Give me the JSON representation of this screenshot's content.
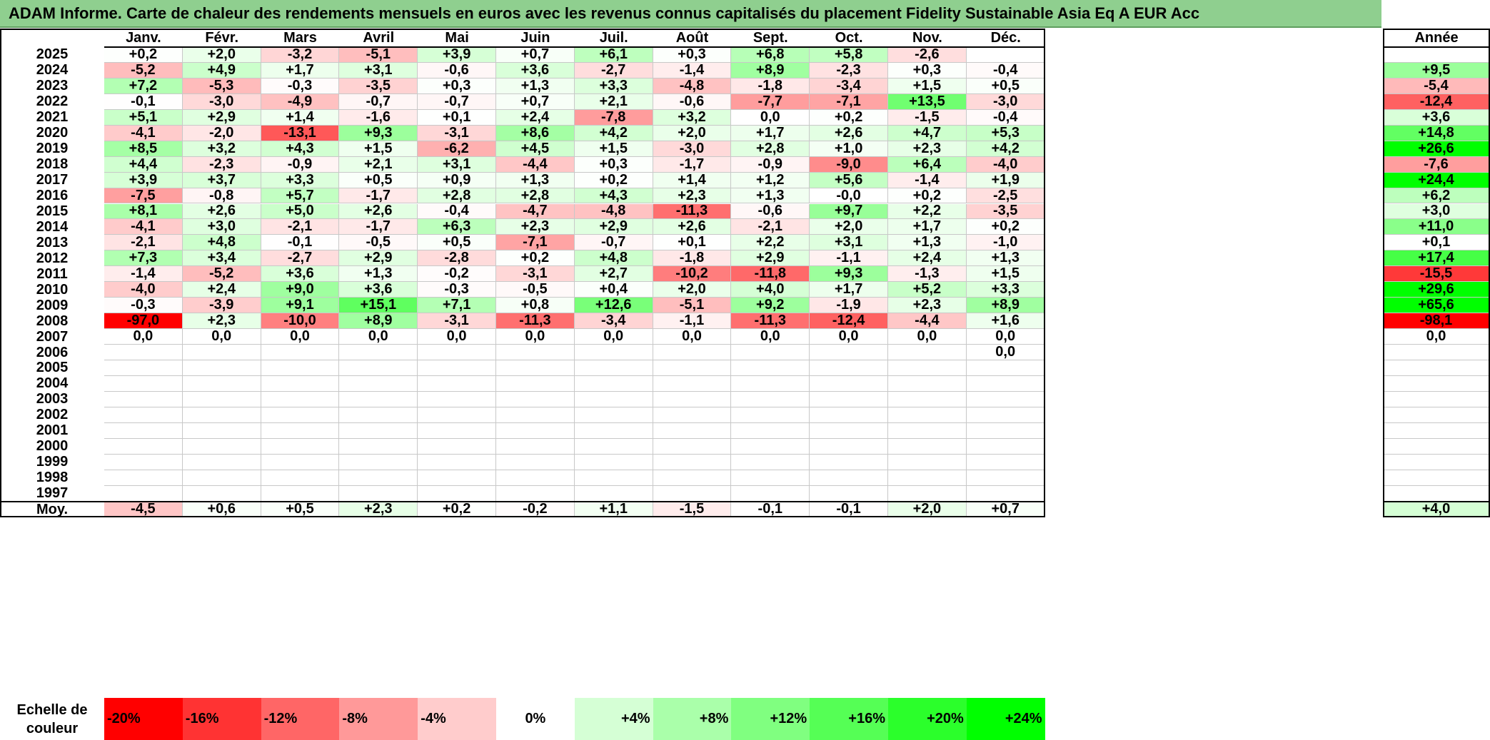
{
  "title": "ADAM Informe. Carte de chaleur des rendements mensuels en euros avec les revenus connus capitalisés du placement Fidelity Sustainable Asia Eq A EUR Acc",
  "colors": {
    "title_bg": "#8fcf8f",
    "neg_max": "#ff0000",
    "pos_max": "#00ff00",
    "neutral": "#ffffff"
  },
  "chart_data": {
    "type": "heatmap",
    "months": [
      "Janv.",
      "Févr.",
      "Mars",
      "Avril",
      "Mai",
      "Juin",
      "Juil.",
      "Août",
      "Sept.",
      "Oct.",
      "Nov.",
      "Déc."
    ],
    "year_header": "Année",
    "years": [
      "2025",
      "2024",
      "2023",
      "2022",
      "2021",
      "2020",
      "2019",
      "2018",
      "2017",
      "2016",
      "2015",
      "2014",
      "2013",
      "2012",
      "2011",
      "2010",
      "2009",
      "2008",
      "2007",
      "2006",
      "2005",
      "2004",
      "2003",
      "2002",
      "2001",
      "2000",
      "1999",
      "1998",
      "1997"
    ],
    "values": [
      [
        "+0,2",
        "+2,0",
        "-3,2",
        "-5,1",
        "+3,9",
        "+0,7",
        "+6,1",
        "+0,3",
        "+6,8",
        "+5,8",
        "-2,6",
        ""
      ],
      [
        "-5,2",
        "+4,9",
        "+1,7",
        "+3,1",
        "-0,6",
        "+3,6",
        "-2,7",
        "-1,4",
        "+8,9",
        "-2,3",
        "+0,3",
        "-0,4"
      ],
      [
        "+7,2",
        "-5,3",
        "-0,3",
        "-3,5",
        "+0,3",
        "+1,3",
        "+3,3",
        "-4,8",
        "-1,8",
        "-3,4",
        "+1,5",
        "+0,5"
      ],
      [
        "-0,1",
        "-3,0",
        "-4,9",
        "-0,7",
        "-0,7",
        "+0,7",
        "+2,1",
        "-0,6",
        "-7,7",
        "-7,1",
        "+13,5",
        "-3,0"
      ],
      [
        "+5,1",
        "+2,9",
        "+1,4",
        "-1,6",
        "+0,1",
        "+2,4",
        "-7,8",
        "+3,2",
        "0,0",
        "+0,2",
        "-1,5",
        "-0,4"
      ],
      [
        "-4,1",
        "-2,0",
        "-13,1",
        "+9,3",
        "-3,1",
        "+8,6",
        "+4,2",
        "+2,0",
        "+1,7",
        "+2,6",
        "+4,7",
        "+5,3"
      ],
      [
        "+8,5",
        "+3,2",
        "+4,3",
        "+1,5",
        "-6,2",
        "+4,5",
        "+1,5",
        "-3,0",
        "+2,8",
        "+1,0",
        "+2,3",
        "+4,2"
      ],
      [
        "+4,4",
        "-2,3",
        "-0,9",
        "+2,1",
        "+3,1",
        "-4,4",
        "+0,3",
        "-1,7",
        "-0,9",
        "-9,0",
        "+6,4",
        "-4,0"
      ],
      [
        "+3,9",
        "+3,7",
        "+3,3",
        "+0,5",
        "+0,9",
        "+1,3",
        "+0,2",
        "+1,4",
        "+1,2",
        "+5,6",
        "-1,4",
        "+1,9"
      ],
      [
        "-7,5",
        "-0,8",
        "+5,7",
        "-1,7",
        "+2,8",
        "+2,8",
        "+4,3",
        "+2,3",
        "+1,3",
        "-0,0",
        "+0,2",
        "-2,5"
      ],
      [
        "+8,1",
        "+2,6",
        "+5,0",
        "+2,6",
        "-0,4",
        "-4,7",
        "-4,8",
        "-11,3",
        "-0,6",
        "+9,7",
        "+2,2",
        "-3,5"
      ],
      [
        "-4,1",
        "+3,0",
        "-2,1",
        "-1,7",
        "+6,3",
        "+2,3",
        "+2,9",
        "+2,6",
        "-2,1",
        "+2,0",
        "+1,7",
        "+0,2"
      ],
      [
        "-2,1",
        "+4,8",
        "-0,1",
        "-0,5",
        "+0,5",
        "-7,1",
        "-0,7",
        "+0,1",
        "+2,2",
        "+3,1",
        "+1,3",
        "-1,0"
      ],
      [
        "+7,3",
        "+3,4",
        "-2,7",
        "+2,9",
        "-2,8",
        "+0,2",
        "+4,8",
        "-1,8",
        "+2,9",
        "-1,1",
        "+2,4",
        "+1,3"
      ],
      [
        "-1,4",
        "-5,2",
        "+3,6",
        "+1,3",
        "-0,2",
        "-3,1",
        "+2,7",
        "-10,2",
        "-11,8",
        "+9,3",
        "-1,3",
        "+1,5"
      ],
      [
        "-4,0",
        "+2,4",
        "+9,0",
        "+3,6",
        "-0,3",
        "-0,5",
        "+0,4",
        "+2,0",
        "+4,0",
        "+1,7",
        "+5,2",
        "+3,3"
      ],
      [
        "-0,3",
        "-3,9",
        "+9,1",
        "+15,1",
        "+7,1",
        "+0,8",
        "+12,6",
        "-5,1",
        "+9,2",
        "-1,9",
        "+2,3",
        "+8,9"
      ],
      [
        "-97,0",
        "+2,3",
        "-10,0",
        "+8,9",
        "-3,1",
        "-11,3",
        "-3,4",
        "-1,1",
        "-11,3",
        "-12,4",
        "-4,4",
        "+1,6"
      ],
      [
        "0,0",
        "0,0",
        "0,0",
        "0,0",
        "0,0",
        "0,0",
        "0,0",
        "0,0",
        "0,0",
        "0,0",
        "0,0",
        "0,0"
      ],
      [
        "",
        "",
        "",
        "",
        "",
        "",
        "",
        "",
        "",
        "",
        "",
        "0,0"
      ],
      [
        "",
        "",
        "",
        "",
        "",
        "",
        "",
        "",
        "",
        "",
        "",
        ""
      ],
      [
        "",
        "",
        "",
        "",
        "",
        "",
        "",
        "",
        "",
        "",
        "",
        ""
      ],
      [
        "",
        "",
        "",
        "",
        "",
        "",
        "",
        "",
        "",
        "",
        "",
        ""
      ],
      [
        "",
        "",
        "",
        "",
        "",
        "",
        "",
        "",
        "",
        "",
        "",
        ""
      ],
      [
        "",
        "",
        "",
        "",
        "",
        "",
        "",
        "",
        "",
        "",
        "",
        ""
      ],
      [
        "",
        "",
        "",
        "",
        "",
        "",
        "",
        "",
        "",
        "",
        "",
        ""
      ],
      [
        "",
        "",
        "",
        "",
        "",
        "",
        "",
        "",
        "",
        "",
        "",
        ""
      ],
      [
        "",
        "",
        "",
        "",
        "",
        "",
        "",
        "",
        "",
        "",
        "",
        ""
      ],
      [
        "",
        "",
        "",
        "",
        "",
        "",
        "",
        "",
        "",
        "",
        "",
        ""
      ]
    ],
    "annual": [
      "",
      "+9,5",
      "-5,4",
      "-12,4",
      "+3,6",
      "+14,8",
      "+26,6",
      "-7,6",
      "+24,4",
      "+6,2",
      "+3,0",
      "+11,0",
      "+0,1",
      "+17,4",
      "-15,5",
      "+29,6",
      "+65,6",
      "-98,1",
      "0,0",
      "",
      "",
      "",
      "",
      "",
      "",
      "",
      "",
      "",
      ""
    ],
    "average_label": "Moy.",
    "averages": [
      "-4,5",
      "+0,6",
      "+0,5",
      "+2,3",
      "+0,2",
      "-0,2",
      "+1,1",
      "-1,5",
      "-0,1",
      "-0,1",
      "+2,0",
      "+0,7"
    ],
    "average_annual": "+4,0",
    "scale_label": "Echelle de couleur",
    "scale": [
      "-20%",
      "-16%",
      "-12%",
      "-8%",
      "-4%",
      "0%",
      "+4%",
      "+8%",
      "+12%",
      "+16%",
      "+20%",
      "+24%"
    ],
    "scale_range": [
      -20,
      24
    ]
  }
}
